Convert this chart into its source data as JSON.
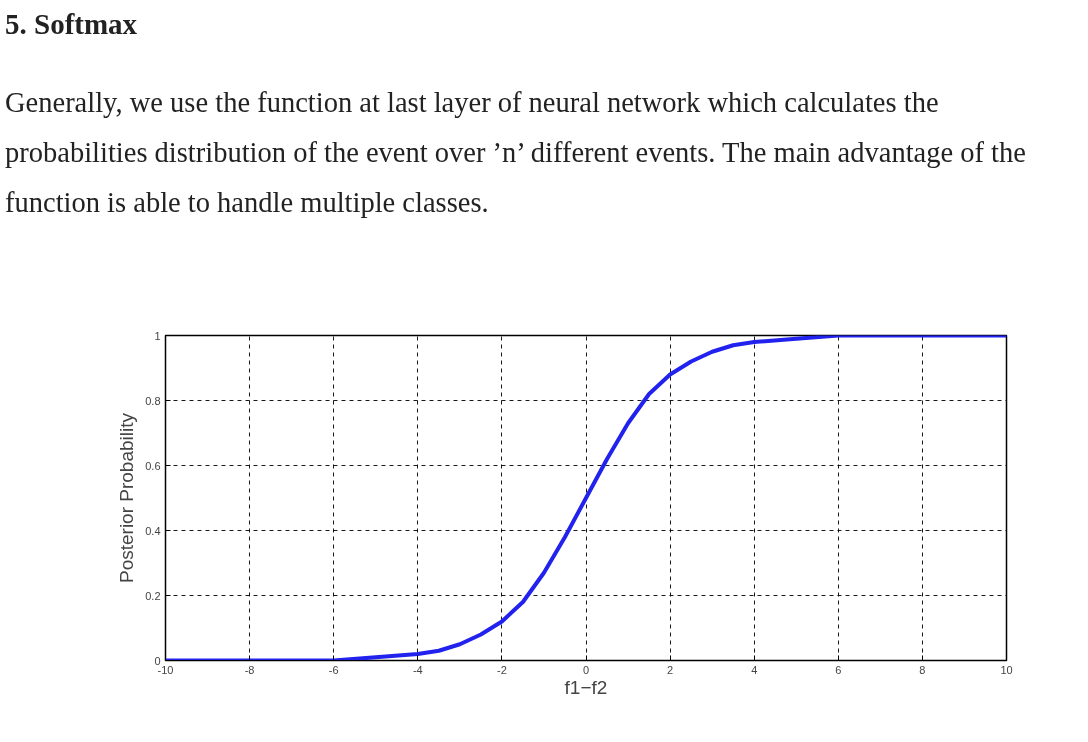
{
  "chart_data": {
    "type": "line",
    "title": "5. Softmax",
    "subtitle": "Generally, we use the function at last layer of neural network which calculates the probabilities distribution of the event over ’n’ different events. The main advantage of the function is able to handle multiple classes.",
    "xlabel": "f1−f2",
    "ylabel": "Posterior Probability",
    "x": [
      -10,
      -8,
      -6,
      -5,
      -4,
      -3.5,
      -3,
      -2.5,
      -2,
      -1.5,
      -1,
      -0.5,
      0,
      0.5,
      1,
      1.5,
      2,
      2.5,
      3,
      3.5,
      4,
      5,
      6,
      8,
      10
    ],
    "series": [
      {
        "color": "#2222ee",
        "values": [
          0,
          0,
          0,
          0.01,
          0.02,
          0.03,
          0.05,
          0.08,
          0.12,
          0.18,
          0.27,
          0.38,
          0.5,
          0.62,
          0.73,
          0.82,
          0.88,
          0.92,
          0.95,
          0.97,
          0.98,
          0.99,
          1,
          1,
          1
        ]
      }
    ],
    "xlim": [
      -10,
      10
    ],
    "ylim": [
      0,
      1
    ],
    "xticks": [
      -10,
      -8,
      -6,
      -4,
      -2,
      0,
      2,
      4,
      6,
      8,
      10
    ],
    "yticks": [
      0,
      0.2,
      0.4,
      0.6,
      0.8,
      1
    ],
    "grid": true
  }
}
